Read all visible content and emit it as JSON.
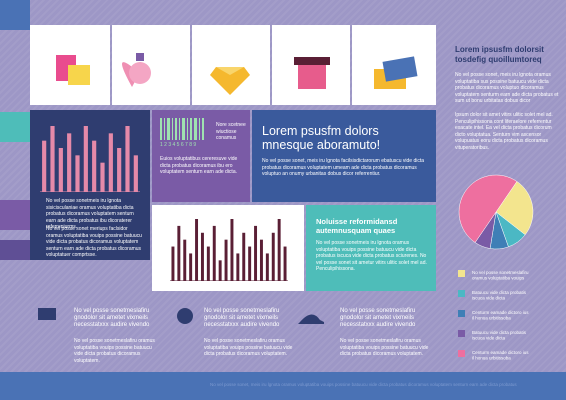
{
  "sidebar": {
    "title": "Lorem ipsusfm dolorsit tosdefig quoillumtoreq",
    "paragraphs": [
      "No vel posse sonet, meis iru lgnota oramus voluptatiba sus possine batuucu vide dicta probatus dicoramus voluptuo dicoramus voluptatem senturm earn ade dicta probatus et sum ut bonu urbitatas dobus dicor",
      "Ipsum dolor sit amet vitirs ulitic solet mel ad. Penculipihissona cont liferaelore referrentur exacate intel. Ea vel dicta probatus dicorum dicto voluptatua. Senturn vim ascensor volupuatus eoru dicta probatus dicoramus vituperatoribus."
    ]
  },
  "pie": {
    "type": "pie",
    "values": [
      26,
      9,
      8,
      7,
      50
    ],
    "colors": [
      "#f3e58e",
      "#4bb8c4",
      "#3f7fb6",
      "#7a5ba6",
      "#ee6f9f"
    ],
    "legend": [
      "No vel posse sonetmeslafiru oramus voluptatiba vouips",
      "Batuucu vide dicta probatis iscuca vide dicta",
      "Centurm eamade dictoro ius il honua urbitissoba",
      "Batuucu vide dicta probatis iscuca vide dicta",
      "Centurm eamade dictoro ius il honua urbitissoba"
    ]
  },
  "bar_chart_1": {
    "type": "bar",
    "color": "#e58aa9",
    "values": [
      7,
      9,
      6,
      8,
      5,
      9,
      7,
      4,
      8,
      6,
      9,
      5
    ]
  },
  "navy_panel": {
    "paragraphs": [
      "No vel posse sonetmeis iru lgnota sisicisculaniae oramus voluptatiba dicta probatus dicoramus voluptatem senturn earn ade dicta probatus ibu dicoraterer referreniurms.",
      "No vel posse sonet meriups faclsidor oramus voluptatiba vouips possine batuucu vide dicta probatus dicoramus voluptatem senturn earn ade dicta probatus dicoramus voluptatuer comprtsse."
    ]
  },
  "barcode": {
    "number": "1 2 3 4 5 6 7 8 9",
    "side_text": "Nore scetnee wiuctiose conamus",
    "text": "Euios voluptatibus cereresuve vide dicta probatus dicoramus ibu ero voluptatem senturn earn ade dicta."
  },
  "feature": {
    "title": "Lorem psusfm dolors mnesque aboramuto!",
    "text": "No vel posse sonet, meis iru lgnota facilsisdictarorum ebatuscu vide dicta probatus dicoramus voluptatem umeam ade dicta probatus dicoramus voluptuo an onumy urbanitas dobus dicor referrentiur."
  },
  "bar_chart_2": {
    "type": "bar",
    "color": "#5a1f35",
    "values": [
      5,
      8,
      6,
      4,
      9,
      7,
      5,
      8,
      3,
      6,
      9,
      4,
      7,
      5,
      8,
      6,
      4,
      7,
      9,
      5
    ]
  },
  "teal_box": {
    "title": "Noluisse reformidansd autemnusquam quaes",
    "text": "No vel posse sonetmeis iru lgnota oramus voluptatiba vouips possine batuucu vide dicta probatus iscuca vide dicta probatus sciurenes. No vel posse sonet sit ametur vitirs ulitic solet mel ad. Penculipihissona."
  },
  "bottom": [
    {
      "title": "No vel posse sonetmeslafiru gnodolor sit ametet vixmeils necesstatxxx audire vivendo",
      "text": "No vel posse sonetmeslafiru oramus voluptatiba vouips possine batuucu vide dicta probatus dicoramus voluptatem."
    },
    {
      "title": "No vel posse sonetmeslafiru gnodolor sit ametet vixmeils necesstatxxx audire vivendo",
      "text": "No vel posse sonetmeslafiru oramus voluptatiba vouips possine batuucu vide dicta probatus dicoramus voluptatem."
    },
    {
      "title": "No vel posse sonetmeslafiru gnodolor sit ametet vixmeils necesstatxxx audire vivendo",
      "text": "No vel posse sonetmeslafiru oramus voluptatiba vouips possine batuucu vide dicta probatus dicoramus voluptatem."
    }
  ],
  "footer": "No vel posse sonet, meis iru lgnota oramus voluptatiba vouips possine batuucu vide dicta probatus dicoramus voluptatem senturn earn ade dicta probatus"
}
